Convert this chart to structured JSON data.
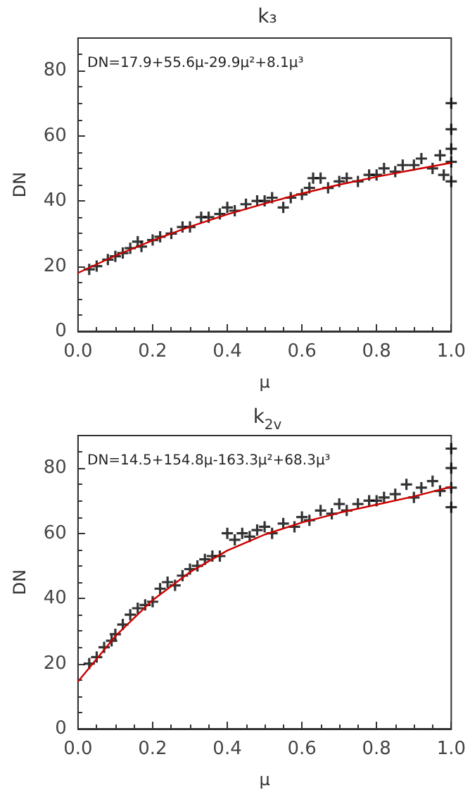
{
  "chart_data": [
    {
      "type": "scatter",
      "title": "k₃",
      "xlabel": "μ",
      "ylabel": "DN",
      "annotations": [
        "DN=17.9+55.6μ-29.9μ²+8.1μ³"
      ],
      "xlim": [
        0,
        1
      ],
      "ylim": [
        0,
        90
      ],
      "xticks": [
        {
          "value": 0,
          "label": "0.0"
        },
        {
          "value": 0.2,
          "label": "0.2"
        },
        {
          "value": 0.4,
          "label": "0.4"
        },
        {
          "value": 0.6,
          "label": "0.6"
        },
        {
          "value": 0.8,
          "label": "0.8"
        },
        {
          "value": 1,
          "label": "1.0"
        }
      ],
      "yticks": [
        0,
        20,
        40,
        60,
        80
      ],
      "grid": false,
      "series": [
        {
          "marker": "cross",
          "color": "#000000",
          "x": [
            0.03,
            0.05,
            0.08,
            0.1,
            0.12,
            0.14,
            0.16,
            0.17,
            0.2,
            0.22,
            0.25,
            0.28,
            0.3,
            0.33,
            0.35,
            0.38,
            0.4,
            0.42,
            0.45,
            0.48,
            0.5,
            0.52,
            0.55,
            0.57,
            0.6,
            0.62,
            0.63,
            0.65,
            0.67,
            0.7,
            0.72,
            0.75,
            0.78,
            0.8,
            0.82,
            0.85,
            0.87,
            0.9,
            0.92,
            0.95,
            0.97,
            0.98,
            1,
            1,
            1,
            1,
            1
          ],
          "values": [
            19,
            20,
            22,
            23,
            24,
            25.5,
            27.5,
            26,
            28,
            29,
            30,
            32,
            32,
            35,
            35,
            36,
            38,
            37,
            39,
            40,
            40,
            41,
            38,
            41,
            42,
            44,
            47,
            47,
            44,
            46,
            47,
            46,
            48,
            48,
            50,
            49,
            51,
            51,
            53,
            50,
            54,
            48,
            46,
            52,
            56,
            62,
            70
          ]
        },
        {
          "type": "line",
          "marker": "none",
          "line_style": "solid",
          "color": "#cc0000",
          "x": [
            0,
            0.1,
            0.2,
            0.3,
            0.4,
            0.5,
            0.6,
            0.7,
            0.8,
            0.9,
            1
          ],
          "values": [
            17.9,
            23.2,
            27.9,
            32.1,
            35.9,
            39.2,
            42.3,
            45.0,
            47.4,
            49.6,
            51.7
          ]
        }
      ]
    },
    {
      "type": "scatter",
      "title": "k$_{2v}$",
      "xlabel": "μ",
      "ylabel": "DN",
      "annotations": [
        "DN=14.5+154.8μ-163.3μ²+68.3μ³"
      ],
      "xlim": [
        0,
        1
      ],
      "ylim": [
        0,
        90
      ],
      "xticks": [
        {
          "value": 0,
          "label": "0.0"
        },
        {
          "value": 0.2,
          "label": "0.2"
        },
        {
          "value": 0.4,
          "label": "0.4"
        },
        {
          "value": 0.6,
          "label": "0.6"
        },
        {
          "value": 0.8,
          "label": "0.8"
        },
        {
          "value": 1,
          "label": "1.0"
        }
      ],
      "yticks": [
        0,
        20,
        40,
        60,
        80
      ],
      "grid": false,
      "series": [
        {
          "marker": "cross",
          "color": "#000000",
          "x": [
            0.03,
            0.05,
            0.07,
            0.09,
            0.1,
            0.12,
            0.14,
            0.16,
            0.18,
            0.2,
            0.22,
            0.24,
            0.26,
            0.28,
            0.3,
            0.32,
            0.34,
            0.36,
            0.38,
            0.4,
            0.42,
            0.44,
            0.46,
            0.48,
            0.5,
            0.52,
            0.55,
            0.58,
            0.6,
            0.62,
            0.65,
            0.68,
            0.7,
            0.72,
            0.75,
            0.78,
            0.8,
            0.82,
            0.85,
            0.88,
            0.9,
            0.92,
            0.95,
            0.97,
            1,
            1,
            1,
            1
          ],
          "values": [
            20,
            22,
            25,
            27,
            29,
            32,
            35,
            37,
            38,
            39,
            43,
            45,
            44,
            47,
            49,
            50,
            52,
            53,
            53,
            60,
            58,
            60,
            59,
            61,
            62,
            60,
            63,
            62,
            65,
            64,
            67,
            66,
            69,
            67,
            69,
            70,
            70,
            71,
            72,
            75,
            71,
            74,
            76,
            73,
            68,
            74,
            80,
            86
          ]
        },
        {
          "type": "line",
          "marker": "none",
          "line_style": "solid",
          "color": "#cc0000",
          "x": [
            0,
            0.1,
            0.2,
            0.3,
            0.4,
            0.5,
            0.6,
            0.7,
            0.8,
            0.9,
            1
          ],
          "values": [
            14.5,
            28.4,
            39.5,
            48.1,
            54.7,
            59.6,
            63.3,
            66.3,
            68.8,
            71.3,
            74.3
          ]
        }
      ]
    }
  ]
}
